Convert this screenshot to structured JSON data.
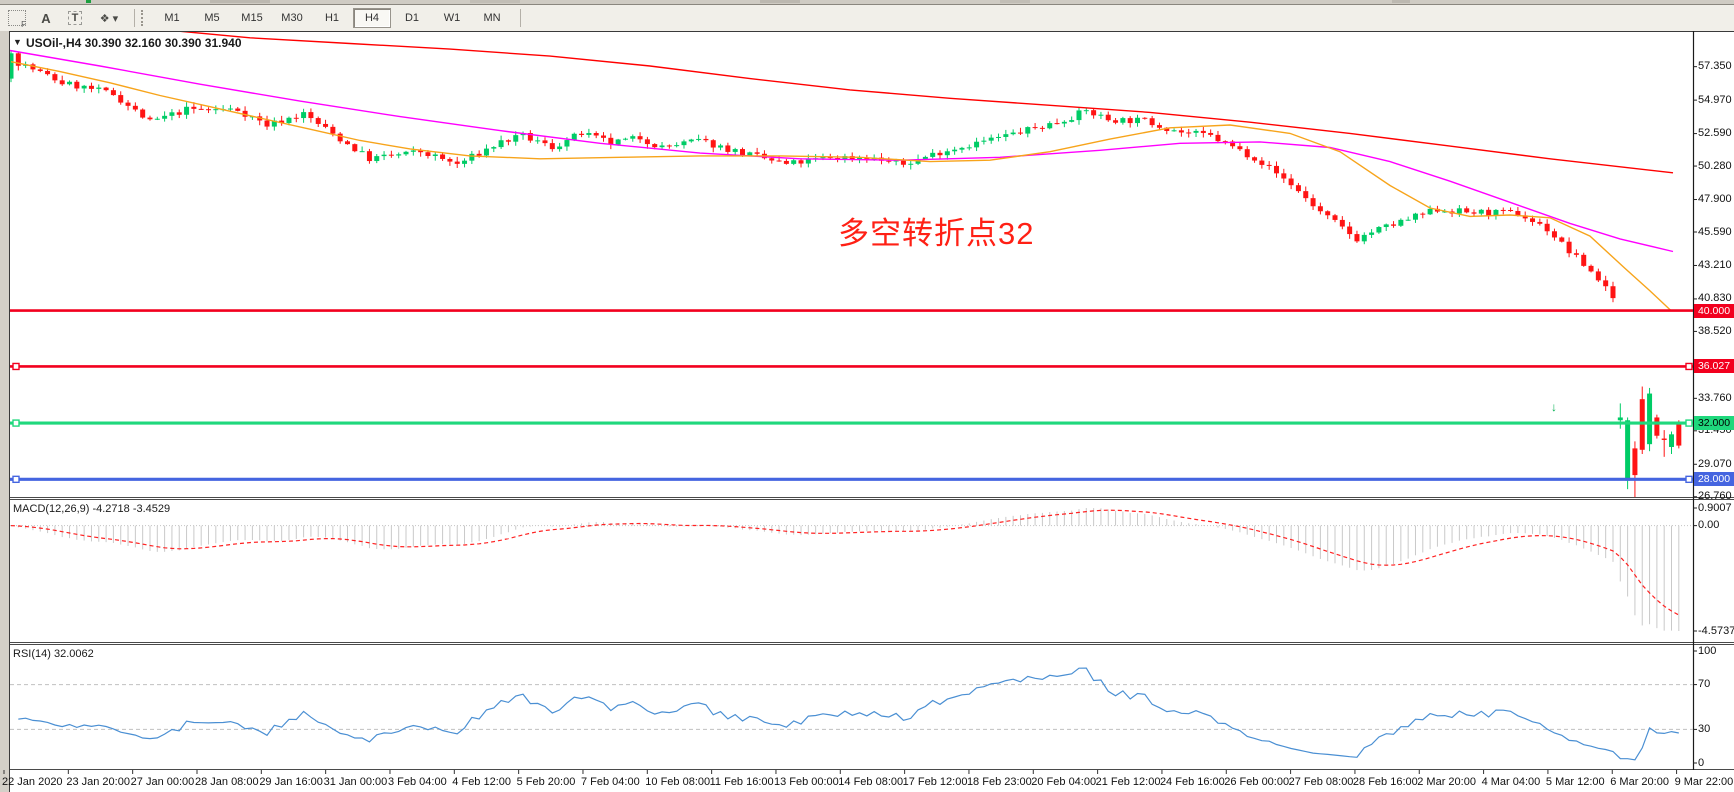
{
  "toolbar": {
    "icons": [
      {
        "name": "indicators-grid-icon",
        "glyph": "F"
      },
      {
        "name": "label-a-icon",
        "glyph": "A"
      },
      {
        "name": "text-box-icon",
        "glyph": "T"
      },
      {
        "name": "shapes-dropdown-icon",
        "glyph": "❖",
        "caret": "▾"
      }
    ],
    "timeframes": [
      "M1",
      "M5",
      "M15",
      "M30",
      "H1",
      "H4",
      "D1",
      "W1",
      "MN"
    ],
    "active_timeframe": "H4"
  },
  "chart_data": {
    "type": "candlestick",
    "symbol": "USOil-",
    "period": "H4",
    "title": "USOil-,H4 30.390 32.160 30.390 31.940",
    "last_bar": {
      "open": "30.390",
      "high": "32.160",
      "low": "30.390",
      "close": "31.940"
    },
    "annotation": {
      "text": "多空转折点32",
      "color": "#ff2015"
    },
    "y_ticks": [
      "57.350",
      "54.970",
      "52.590",
      "50.280",
      "47.900",
      "45.590",
      "43.210",
      "40.830",
      "38.520",
      "33.760",
      "31.450",
      "29.070",
      "26.760"
    ],
    "h_lines": [
      {
        "name": "hline-40",
        "value": 40.0,
        "label": "40.000",
        "color": "#f2001e",
        "text_color": "#ffffff",
        "width": 2.6,
        "anchors": false
      },
      {
        "name": "hline-36",
        "value": 36.027,
        "label": "36.027",
        "color": "#f2001e",
        "text_color": "#ffffff",
        "width": 2.6,
        "anchors": true
      },
      {
        "name": "hline-32",
        "value": 32.0,
        "label": "32.000",
        "color": "#1fd87c",
        "text_color": "#000000",
        "width": 3.2,
        "anchors": true
      },
      {
        "name": "hline-28",
        "value": 28.0,
        "label": "28.000",
        "color": "#4565e0",
        "text_color": "#ffffff",
        "width": 3.2,
        "anchors": true
      }
    ],
    "candles": {
      "count": 229,
      "up_color": "#00cc66",
      "down_color": "#ff1414",
      "first": {
        "o": 56.5,
        "h": 58.45,
        "l": 56.25,
        "c": 58.3
      },
      "trend_keypoints": [
        [
          0,
          57.9
        ],
        [
          7,
          56.2
        ],
        [
          14,
          55.4
        ],
        [
          19,
          53.4
        ],
        [
          24,
          54.3
        ],
        [
          31,
          54.3
        ],
        [
          35,
          53.2
        ],
        [
          40,
          54.0
        ],
        [
          45,
          52.2
        ],
        [
          49,
          50.8
        ],
        [
          56,
          51.3
        ],
        [
          61,
          50.4
        ],
        [
          67,
          52.0
        ],
        [
          70,
          52.4
        ],
        [
          74,
          51.6
        ],
        [
          78,
          52.6
        ],
        [
          82,
          51.9
        ],
        [
          86,
          52.3
        ],
        [
          89,
          51.6
        ],
        [
          94,
          52.1
        ],
        [
          100,
          51.2
        ],
        [
          106,
          50.4
        ],
        [
          112,
          50.9
        ],
        [
          117,
          50.9
        ],
        [
          122,
          50.4
        ],
        [
          127,
          51.3
        ],
        [
          135,
          52.3
        ],
        [
          143,
          53.4
        ],
        [
          147,
          54.2
        ],
        [
          150,
          53.6
        ],
        [
          155,
          53.5
        ],
        [
          160,
          52.7
        ],
        [
          164,
          52.4
        ],
        [
          170,
          50.9
        ],
        [
          175,
          49.0
        ],
        [
          179,
          47.0
        ],
        [
          184,
          45.1
        ],
        [
          186,
          45.6
        ],
        [
          190,
          46.3
        ],
        [
          195,
          47.2
        ],
        [
          199,
          47.0
        ],
        [
          206,
          46.9
        ],
        [
          210,
          45.8
        ],
        [
          213,
          44.2
        ],
        [
          216,
          42.8
        ],
        [
          219,
          41.1
        ]
      ],
      "final_candles": [
        {
          "o": 32.2,
          "h": 33.4,
          "l": 31.6,
          "c": 32.4
        },
        {
          "o": 27.9,
          "h": 32.4,
          "l": 27.3,
          "c": 32.2
        },
        {
          "o": 30.2,
          "h": 30.7,
          "l": 26.7,
          "c": 28.3
        },
        {
          "o": 33.7,
          "h": 34.6,
          "l": 29.8,
          "c": 30.1
        },
        {
          "o": 30.5,
          "h": 34.5,
          "l": 30.0,
          "c": 34.1
        },
        {
          "o": 32.4,
          "h": 32.6,
          "l": 30.9,
          "c": 31.1
        },
        {
          "o": 30.9,
          "h": 31.5,
          "l": 29.6,
          "c": 30.8
        },
        {
          "o": 30.3,
          "h": 31.4,
          "l": 29.8,
          "c": 31.2
        },
        {
          "o": 32.1,
          "h": 32.2,
          "l": 30.2,
          "c": 30.4
        }
      ]
    },
    "moving_averages": [
      {
        "name": "ma-slow",
        "color": "#ff0000",
        "points": [
          [
            100,
            60.4
          ],
          [
            250,
            59.4
          ],
          [
            350,
            59.0
          ],
          [
            450,
            58.6
          ],
          [
            550,
            58.1
          ],
          [
            650,
            57.4
          ],
          [
            750,
            56.5
          ],
          [
            850,
            55.7
          ],
          [
            950,
            55.1
          ],
          [
            1050,
            54.6
          ],
          [
            1150,
            54.1
          ],
          [
            1250,
            53.4
          ],
          [
            1350,
            52.6
          ],
          [
            1450,
            51.7
          ],
          [
            1550,
            50.8
          ],
          [
            1673,
            49.8
          ]
        ]
      },
      {
        "name": "ma-mid",
        "color": "#ff00ff",
        "points": [
          [
            10,
            58.5
          ],
          [
            100,
            57.4
          ],
          [
            200,
            56.1
          ],
          [
            300,
            54.9
          ],
          [
            400,
            53.8
          ],
          [
            500,
            52.8
          ],
          [
            600,
            51.9
          ],
          [
            700,
            51.2
          ],
          [
            800,
            50.8
          ],
          [
            900,
            50.7
          ],
          [
            1000,
            50.9
          ],
          [
            1100,
            51.4
          ],
          [
            1180,
            51.9
          ],
          [
            1260,
            52.0
          ],
          [
            1330,
            51.6
          ],
          [
            1390,
            50.6
          ],
          [
            1450,
            49.2
          ],
          [
            1510,
            47.7
          ],
          [
            1570,
            46.2
          ],
          [
            1620,
            45.1
          ],
          [
            1673,
            44.2
          ]
        ]
      },
      {
        "name": "ma-fast",
        "color": "#f7a41b",
        "points": [
          [
            11,
            57.7
          ],
          [
            60,
            57.0
          ],
          [
            110,
            56.2
          ],
          [
            160,
            55.3
          ],
          [
            210,
            54.5
          ],
          [
            260,
            53.7
          ],
          [
            310,
            52.9
          ],
          [
            360,
            52.1
          ],
          [
            410,
            51.5
          ],
          [
            470,
            51.0
          ],
          [
            540,
            50.8
          ],
          [
            620,
            50.9
          ],
          [
            700,
            51.0
          ],
          [
            780,
            51.0
          ],
          [
            860,
            50.9
          ],
          [
            930,
            50.6
          ],
          [
            990,
            50.7
          ],
          [
            1050,
            51.3
          ],
          [
            1110,
            52.2
          ],
          [
            1170,
            53.0
          ],
          [
            1230,
            53.2
          ],
          [
            1290,
            52.6
          ],
          [
            1340,
            51.3
          ],
          [
            1390,
            48.9
          ],
          [
            1430,
            47.3
          ],
          [
            1470,
            46.7
          ],
          [
            1510,
            46.8
          ],
          [
            1550,
            46.6
          ],
          [
            1590,
            45.3
          ],
          [
            1625,
            43.0
          ],
          [
            1650,
            41.4
          ],
          [
            1671,
            40.0
          ]
        ]
      }
    ],
    "macd": {
      "label": "MACD(12,26,9) -4.2718 -3.4529",
      "fast": 12,
      "slow": 26,
      "signal": 9,
      "scale_max": "0.9007",
      "scale_zero": "0.00",
      "scale_min": "-4.5737",
      "hist_color": "#c9c9c9",
      "signal_color": "#ff2222"
    },
    "rsi": {
      "label": "RSI(14) 32.0062",
      "period": 14,
      "line_color": "#4a8fd3",
      "levels": [
        70,
        30
      ],
      "scale_ticks": [
        "100",
        "70",
        "30",
        "0"
      ]
    },
    "x_labels": [
      "22 Jan 2020",
      "23 Jan 20:00",
      "27 Jan 00:00",
      "28 Jan 08:00",
      "29 Jan 16:00",
      "31 Jan 00:00",
      "3 Feb 04:00",
      "4 Feb 12:00",
      "5 Feb 20:00",
      "7 Feb 04:00",
      "10 Feb 08:00",
      "11 Feb 16:00",
      "13 Feb 00:00",
      "14 Feb 08:00",
      "17 Feb 12:00",
      "18 Feb 23:00",
      "20 Feb 04:00",
      "21 Feb 12:00",
      "24 Feb 16:00",
      "26 Feb 00:00",
      "27 Feb 08:00",
      "28 Feb 16:00",
      "2 Mar 20:00",
      "4 Mar 04:00",
      "5 Mar 12:00",
      "6 Mar 20:00",
      "9 Mar 22:00"
    ],
    "sell_arrow": {
      "x": 1551,
      "y": 400,
      "color": "#00b050",
      "glyph": "↓"
    }
  }
}
